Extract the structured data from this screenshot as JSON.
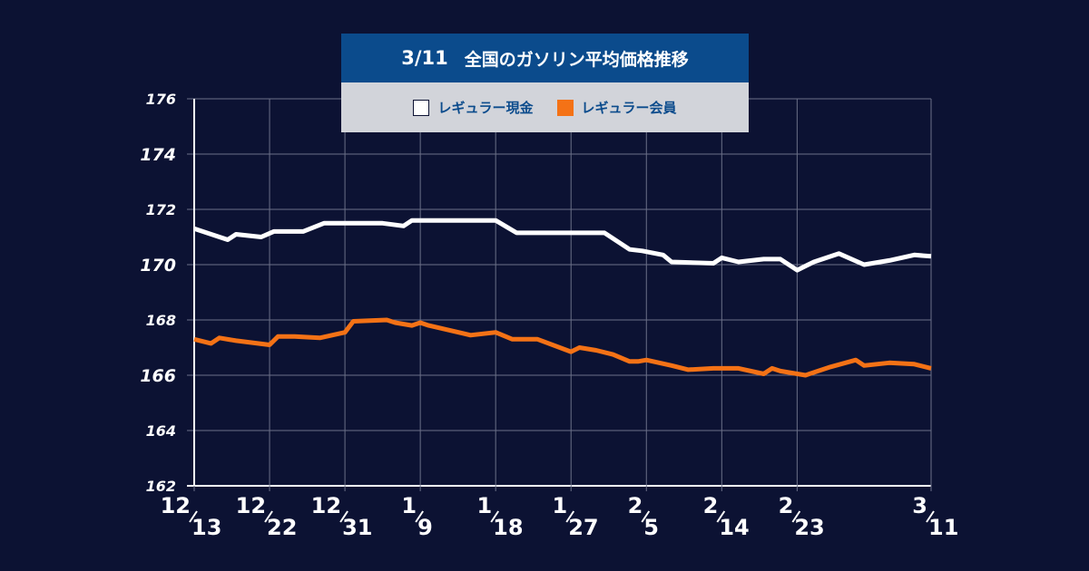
{
  "chart_data": {
    "type": "line",
    "title_date": "3/11",
    "title": "全国のガソリン平均価格推移",
    "ylim": [
      162,
      176
    ],
    "yticks": [
      "162",
      "164",
      "166",
      "168",
      "170",
      "172",
      "174",
      "176"
    ],
    "xlim": [
      0,
      88
    ],
    "grid": true,
    "legend_position": "top-center",
    "xticks": [
      {
        "month": "12",
        "day": "13",
        "x": 0
      },
      {
        "month": "12",
        "day": "22",
        "x": 9
      },
      {
        "month": "12",
        "day": "31",
        "x": 18
      },
      {
        "month": "1",
        "day": "9",
        "x": 27
      },
      {
        "month": "1",
        "day": "18",
        "x": 36
      },
      {
        "month": "1",
        "day": "27",
        "x": 45
      },
      {
        "month": "2",
        "day": "5",
        "x": 54
      },
      {
        "month": "2",
        "day": "14",
        "x": 63
      },
      {
        "month": "2",
        "day": "23",
        "x": 72
      },
      {
        "month": "3",
        "day": "11",
        "x": 88
      }
    ],
    "series": [
      {
        "name": "レギュラー現金",
        "color": "#ffffff",
        "x": [
          0,
          4,
          5,
          8,
          9.5,
          13,
          15.5,
          22.5,
          25,
          26,
          27,
          36,
          38.5,
          41.5,
          49,
          52,
          53.5,
          56,
          57,
          62,
          63,
          65,
          68,
          70,
          72,
          73,
          74,
          77,
          80,
          83,
          86,
          88
        ],
        "y": [
          171.3,
          170.9,
          171.1,
          171.0,
          171.2,
          171.2,
          171.5,
          171.5,
          171.4,
          171.6,
          171.6,
          171.6,
          171.15,
          171.15,
          171.15,
          170.55,
          170.5,
          170.35,
          170.1,
          170.05,
          170.25,
          170.1,
          170.2,
          170.2,
          169.8,
          169.95,
          170.1,
          170.4,
          170.0,
          170.15,
          170.35,
          170.3
        ]
      },
      {
        "name": "レギュラー会員",
        "color": "#f47216",
        "x": [
          0,
          2,
          3,
          5,
          9,
          10,
          12,
          15,
          18,
          19,
          23,
          24,
          26,
          27,
          28,
          33,
          36,
          38,
          41,
          45,
          46,
          48,
          50,
          52,
          53,
          54,
          57,
          59,
          62,
          65,
          68,
          69,
          70,
          73,
          76,
          79,
          80,
          83,
          86,
          88
        ],
        "y": [
          167.3,
          167.15,
          167.35,
          167.25,
          167.1,
          167.4,
          167.4,
          167.35,
          167.55,
          167.95,
          168.0,
          167.9,
          167.8,
          167.9,
          167.8,
          167.45,
          167.55,
          167.3,
          167.3,
          166.85,
          167.0,
          166.9,
          166.75,
          166.5,
          166.5,
          166.55,
          166.35,
          166.2,
          166.25,
          166.25,
          166.05,
          166.25,
          166.15,
          166.0,
          166.3,
          166.55,
          166.35,
          166.45,
          166.4,
          166.25
        ]
      }
    ]
  }
}
